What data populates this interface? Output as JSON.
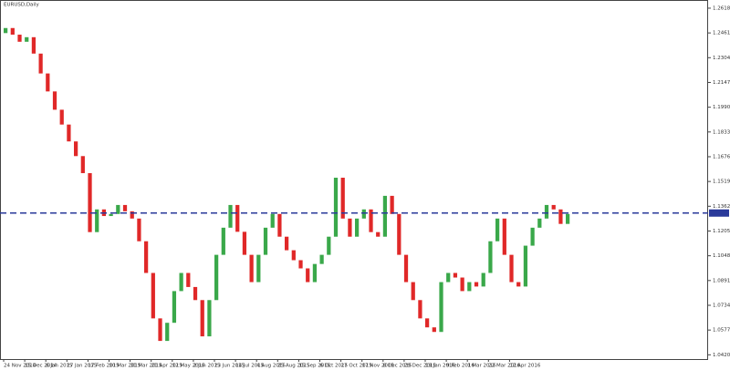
{
  "chart_data": {
    "type": "candlestick",
    "title": "EURUSD,Daily",
    "categories": [
      "24 Nov 2014",
      null,
      null,
      "15 Dec 2014",
      null,
      null,
      "6 Jan 2015",
      null,
      null,
      "27 Jan 2015",
      null,
      null,
      "17 Feb 2015",
      null,
      null,
      "10 Mar 2015",
      null,
      null,
      "31 Mar 2015",
      null,
      null,
      "21 Apr 2015",
      null,
      null,
      "12 May 2015",
      null,
      null,
      "2 Jun 2015",
      null,
      null,
      "23 Jun 2015",
      null,
      null,
      "14 Jul 2015",
      null,
      null,
      "4 Aug 2015",
      null,
      null,
      "25 Aug 2015",
      null,
      null,
      "15 Sep 2015",
      null,
      null,
      "6 Oct 2015",
      null,
      null,
      "27 Oct 2015",
      null,
      null,
      "17 Nov 2015",
      null,
      null,
      "8 Dec 2015",
      null,
      null,
      "29 Dec 2015",
      null,
      null,
      "19 Jan 2016",
      null,
      null,
      "9 Feb 2016",
      null,
      null,
      "1 Mar 2016",
      null,
      null,
      "22 Mar 2016",
      null,
      null,
      "12 Apr 2016",
      null,
      null,
      null,
      null,
      null,
      null,
      null,
      null
    ],
    "open": [
      1.246,
      1.2492,
      1.245,
      1.2405,
      1.2434,
      1.233,
      1.2204,
      1.209,
      1.1974,
      1.188,
      1.1773,
      1.168,
      1.1572,
      1.1198,
      1.1342,
      1.13,
      1.1313,
      1.137,
      1.133,
      1.1284,
      1.114,
      1.0939,
      1.0651,
      1.0508,
      1.0623,
      1.0824,
      1.0939,
      1.085,
      1.0767,
      1.0537,
      1.0767,
      1.1054,
      1.1226,
      1.137,
      1.12,
      1.1054,
      1.0881,
      1.1054,
      1.1226,
      1.1313,
      1.1169,
      1.1083,
      1.102,
      1.0968,
      1.0881,
      1.0996,
      1.1054,
      1.1169,
      1.1543,
      1.1284,
      1.1169,
      1.1284,
      1.1342,
      1.1198,
      1.1169,
      1.1428,
      1.1313,
      1.1054,
      1.0881,
      1.0767,
      1.0651,
      1.0594,
      1.0565,
      1.0881,
      1.0939,
      1.091,
      1.0824,
      1.0881,
      1.0853,
      1.0939,
      1.114,
      1.1284,
      1.1054,
      1.0881,
      1.0853,
      1.1112,
      1.1226,
      1.1284,
      1.137,
      1.1342,
      1.125
    ],
    "close": [
      1.2492,
      1.245,
      1.2405,
      1.2434,
      1.233,
      1.2204,
      1.209,
      1.1974,
      1.188,
      1.1773,
      1.168,
      1.1572,
      1.1198,
      1.1342,
      1.13,
      1.1313,
      1.137,
      1.133,
      1.1284,
      1.114,
      1.0939,
      1.0651,
      1.0508,
      1.0623,
      1.0824,
      1.0939,
      1.085,
      1.0767,
      1.0537,
      1.0767,
      1.1054,
      1.1226,
      1.137,
      1.12,
      1.1054,
      1.0881,
      1.1054,
      1.1226,
      1.1313,
      1.1169,
      1.1083,
      1.102,
      1.0968,
      1.0881,
      1.0996,
      1.1054,
      1.1169,
      1.1543,
      1.1284,
      1.1169,
      1.1284,
      1.1342,
      1.1198,
      1.1169,
      1.1428,
      1.1313,
      1.1054,
      1.0881,
      1.0767,
      1.0651,
      1.0594,
      1.0565,
      1.0881,
      1.0939,
      1.091,
      1.0824,
      1.0881,
      1.0853,
      1.0939,
      1.114,
      1.1284,
      1.1054,
      1.0881,
      1.0853,
      1.1112,
      1.1226,
      1.1284,
      1.137,
      1.1342,
      1.125,
      1.1313
    ],
    "up_color": "#3aa84a",
    "down_color": "#e02828",
    "ylim": [
      1.0393,
      1.2664
    ],
    "yticks": [
      {
        "value": 1.2618,
        "label": "1.26180"
      },
      {
        "value": 1.2461,
        "label": "1.24610"
      },
      {
        "value": 1.2304,
        "label": "1.23040"
      },
      {
        "value": 1.2147,
        "label": "1.21470"
      },
      {
        "value": 1.199,
        "label": "1.19900"
      },
      {
        "value": 1.1833,
        "label": "1.18330"
      },
      {
        "value": 1.1676,
        "label": "1.16760"
      },
      {
        "value": 1.1519,
        "label": "1.15190"
      },
      {
        "value": 1.1362,
        "label": "1.13620"
      },
      {
        "value": 1.1205,
        "label": "1.12050"
      },
      {
        "value": 1.1048,
        "label": "1.10480"
      },
      {
        "value": 1.0891,
        "label": "1.08910"
      },
      {
        "value": 1.0734,
        "label": "1.07340"
      },
      {
        "value": 1.0577,
        "label": "1.05770"
      },
      {
        "value": 1.042,
        "label": "1.04200"
      }
    ],
    "hline": {
      "value": 1.1319,
      "color": "#2a3a9a"
    }
  }
}
